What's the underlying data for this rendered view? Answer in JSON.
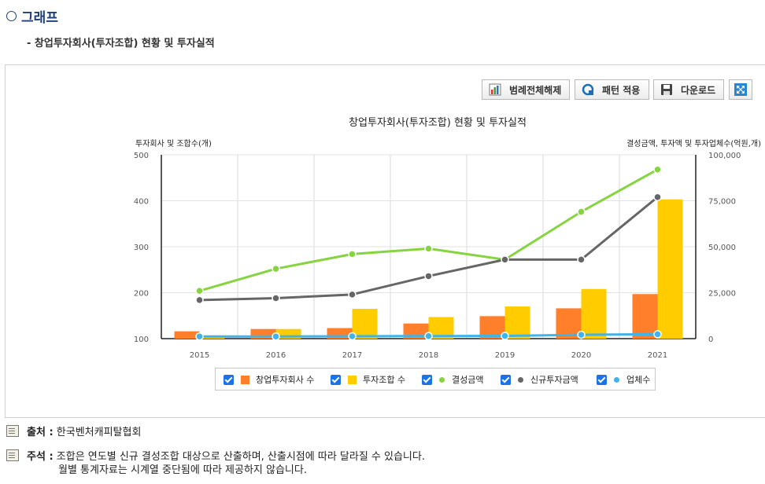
{
  "section_title": "그래프",
  "subtitle": "- 창업투자회사(투자조합) 현황 및 투자실적",
  "toolbar": {
    "legend_toggle": "범례전체해제",
    "pattern_apply": "패턴 적용",
    "download": "다운로드"
  },
  "footer": {
    "source_label": "출처 :",
    "source_value": "한국벤처캐피탈협회",
    "note_label": "주석 :",
    "note_line1": "조합은 연도별 신규 결성조합 대상으로 산출하며, 산출시점에 따라 달라질 수 있습니다.",
    "note_line2": "월별 통계자료는 시계열 중단됨에 따라 제공하지 않습니다."
  },
  "chart_data": {
    "type": "bar",
    "title": "창업투자회사(투자조합) 현황 및 투자실적",
    "ylabel_left": "투자회사 및 조합수(개)",
    "ylabel_right": "결성금액, 투자액 및 투자업체수(억원,개)",
    "categories": [
      "2015",
      "2016",
      "2017",
      "2018",
      "2019",
      "2020",
      "2021"
    ],
    "ylim_left": [
      100,
      500
    ],
    "ylim_right": [
      0,
      100000
    ],
    "yticks_left": [
      "100",
      "200",
      "300",
      "400",
      "500"
    ],
    "yticks_right": [
      "0",
      "25,000",
      "50,000",
      "75,000",
      "100,000"
    ],
    "grid": true,
    "legend_position": "bottom",
    "series": [
      {
        "name": "창업투자회사 수",
        "kind": "bar",
        "axis": "left",
        "color": "#ff7f2a",
        "values": [
          116,
          121,
          123,
          133,
          149,
          166,
          197
        ]
      },
      {
        "name": "투자조합 수",
        "kind": "bar",
        "axis": "left",
        "color": "#ffcc00",
        "values": [
          107,
          121,
          165,
          147,
          170,
          208,
          403
        ]
      },
      {
        "name": "결성금액",
        "kind": "line",
        "axis": "right",
        "color": "#86d43f",
        "values": [
          26000,
          38000,
          46000,
          49000,
          43000,
          69000,
          92000
        ]
      },
      {
        "name": "신규투자금액",
        "kind": "line",
        "axis": "right",
        "color": "#666666",
        "values": [
          21000,
          22000,
          24000,
          34000,
          43000,
          43000,
          77000
        ]
      },
      {
        "name": "업체수",
        "kind": "line",
        "axis": "right",
        "color": "#3fb3ea",
        "values": [
          1200,
          1200,
          1300,
          1400,
          1500,
          2100,
          2400
        ]
      }
    ]
  }
}
